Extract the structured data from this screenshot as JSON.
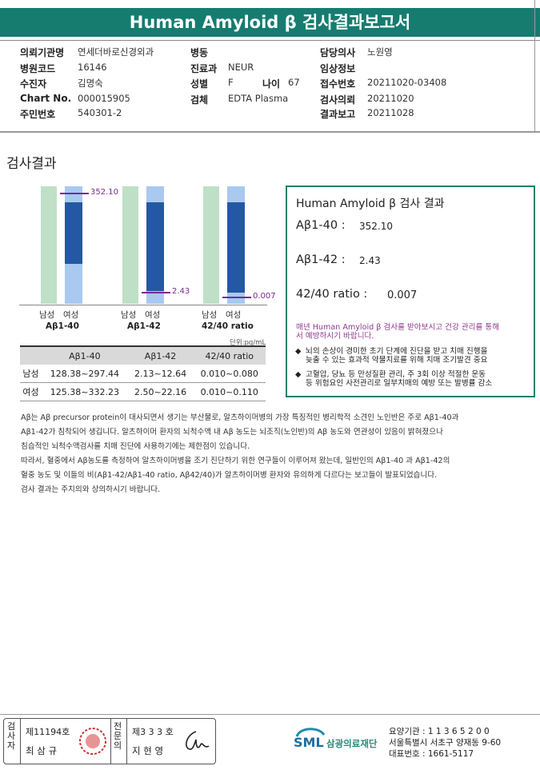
{
  "report_title": "Human Amyloid β 검사결과보고서",
  "header": {
    "institution_label": "의뢰기관명",
    "institution": "연세더바로신경외과",
    "hospital_code_label": "병원코드",
    "hospital_code": "16146",
    "patient_label": "수진자",
    "patient": "김명숙",
    "chart_label": "Chart No.",
    "chart_no": "000015905",
    "id_label": "주민번호",
    "id_no": "540301-2",
    "ward_label": "병동",
    "ward": "",
    "dept_label": "진료과",
    "dept": "NEUR",
    "sex_label": "성별",
    "sex": "F",
    "age_label": "나이",
    "age": "67",
    "specimen_label": "검체",
    "specimen": "EDTA Plasma",
    "doctor_label": "담당의사",
    "doctor": "노원영",
    "clinical_label": "임상정보",
    "clinical": "",
    "receipt_label": "접수번호",
    "receipt_no": "20211020-03408",
    "request_label": "검사의뢰",
    "request_date": "20211020",
    "result_label": "결과보고",
    "result_date": "20211028"
  },
  "section_title": "검사결과",
  "chart_data": [
    {
      "type": "bar",
      "name": "Aβ1-40",
      "categories": [
        "남성",
        "여성"
      ],
      "male_range": [
        128.38,
        297.44
      ],
      "female_range": [
        125.38,
        332.23
      ],
      "patient_value": 352.1,
      "value_label": "352.10"
    },
    {
      "type": "bar",
      "name": "Aβ1-42",
      "categories": [
        "남성",
        "여성"
      ],
      "male_range": [
        2.13,
        12.64
      ],
      "female_range": [
        2.5,
        22.16
      ],
      "patient_value": 2.43,
      "value_label": "2.43"
    },
    {
      "type": "bar",
      "name": "42/40 ratio",
      "categories": [
        "남성",
        "여성"
      ],
      "male_range": [
        0.01,
        0.08
      ],
      "female_range": [
        0.01,
        0.11
      ],
      "patient_value": 0.007,
      "value_label": "0.007"
    }
  ],
  "axis": {
    "male": "남성",
    "female": "여성"
  },
  "unit": "단위:pg/mL",
  "ref_table": {
    "headers": [
      "",
      "Aβ1-40",
      "Aβ1-42",
      "42/40 ratio"
    ],
    "rows": [
      [
        "남성",
        "128.38~297.44",
        "2.13~12.64",
        "0.010~0.080"
      ],
      [
        "여성",
        "125.38~332.23",
        "2.50~22.16",
        "0.010~0.110"
      ]
    ]
  },
  "result_box": {
    "title": "Human Amyloid β 검사 결과",
    "ab40_label": "Aβ1-40 :",
    "ab40": "352.10",
    "ab42_label": "Aβ1-42 :",
    "ab42": "2.43",
    "ratio_label": "42/40 ratio :",
    "ratio": "0.007",
    "notice": [
      "매년 Human Amyloid β 검사를 받아보시고 건강 관리를 통해",
      "서 예방하시기 바랍니다."
    ],
    "bullet1": [
      "뇌의 손상이 경미한 초기 단계에 진단을 받고 치매 진행을",
      "늦출 수 있는 효과적 약물치료를 위해 치매 조기발견 중요"
    ],
    "bullet2": [
      "고혈압, 당뇨 등 만성질환 관리, 주 3회 이상 적절한 운동",
      "등 위험요인 사전관리로 일부치매의 예방 또는 발병률 감소"
    ]
  },
  "description": [
    "Aβ는 Aβ precursor protein이 대사되면서 생기는 부산물로, 알츠하이머병의 가장 특징적인 병리학적 소견인 노인반은 주로 Aβ1-40과",
    "Aβ1-42가 침착되어 생깁니다. 알츠하이머 환자의 뇌척수액 내 Aβ 농도는 뇌조직(노인반)의 Aβ 농도와 연관성이 있음이 밝혀졌으나",
    "침습적인 뇌척수액검사를 치매 진단에 사용하기에는 제한점이 있습니다.",
    "따라서, 혈중에서 Aβ농도를 측정하여 알츠하이머병을 조기 진단하기 위한 연구들이 이루어져 왔는데, 일반인의 Aβ1-40 과 Aβ1-42의",
    "혈중 농도 및 이들의 비(Aβ1-42/Aβ1-40 ratio, Aβ42/40)가 알츠하이머병 환자와 유의하게 다르다는 보고들이 발표되었습니다.",
    "검사 결과는 주치의와 상의하시기 바랍니다."
  ],
  "footer": {
    "inspector_label": "검사자",
    "inspector_no": "제11194호",
    "inspector_name": "최 삼 규",
    "approver_label": "전문의",
    "approver_no": "제3 3 3 호",
    "approver_name": "지 현 영",
    "org_code": "요양기관 : 1 1 3 6 5 2 0 0",
    "address": "서울특별시 서초구 양재동 9-60",
    "phone": "대표번호 : 1661-5117",
    "logo_text": "SML",
    "org_name": "삼광의료재단"
  }
}
